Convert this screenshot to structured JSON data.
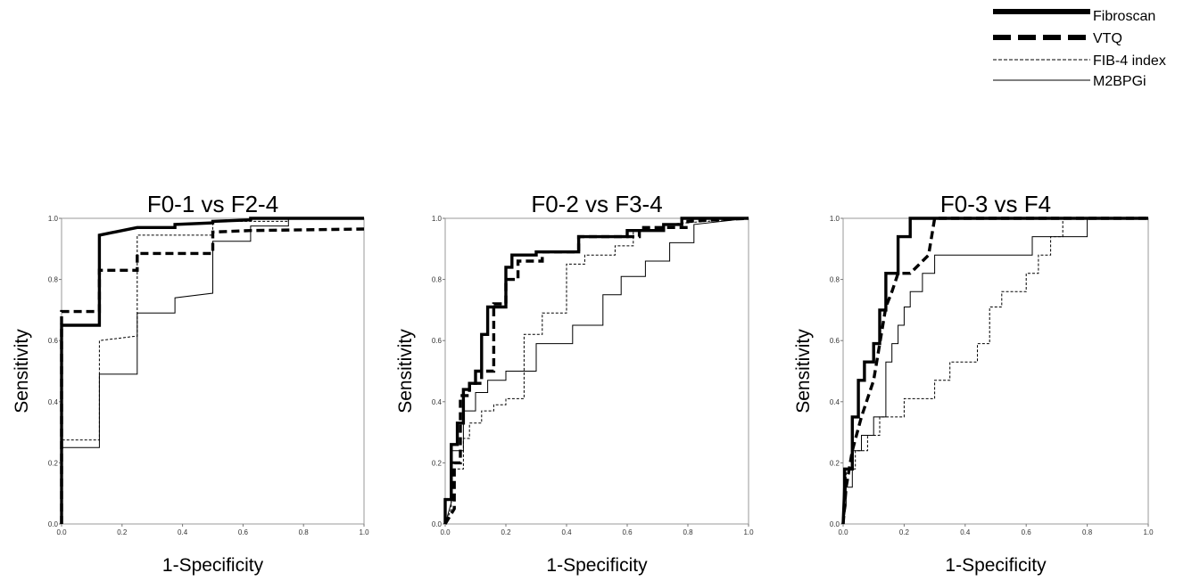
{
  "legend": {
    "items": [
      {
        "label": "Fibroscan",
        "style": "thick-solid"
      },
      {
        "label": "VTQ",
        "style": "thick-dashed"
      },
      {
        "label": "FIB-4 index",
        "style": "thin-dashed"
      },
      {
        "label": "M2BPGi",
        "style": "thin-solid"
      }
    ]
  },
  "chart_data": [
    {
      "type": "line",
      "title": "F0-1 vs F2-4",
      "xlabel": "1-Specificity",
      "ylabel": "Sensitivity",
      "xlim": [
        0,
        1
      ],
      "ylim": [
        0,
        1
      ],
      "ticks": [
        "0.0",
        "0.2",
        "0.4",
        "0.6",
        "0.8",
        "1.0"
      ],
      "grid": false,
      "series": [
        {
          "name": "Fibroscan",
          "x": [
            0,
            0,
            0.125,
            0.125,
            0.25,
            0.25,
            0.375,
            0.375,
            0.5,
            0.5,
            0.625,
            0.625,
            1
          ],
          "y": [
            0,
            0.65,
            0.65,
            0.945,
            0.97,
            0.97,
            0.97,
            0.98,
            0.985,
            0.99,
            0.995,
            1,
            1
          ]
        },
        {
          "name": "VTQ",
          "x": [
            0,
            0,
            0.125,
            0.125,
            0.25,
            0.25,
            0.5,
            0.5,
            0.625,
            1
          ],
          "y": [
            0,
            0.695,
            0.695,
            0.83,
            0.83,
            0.885,
            0.885,
            0.955,
            0.96,
            0.965
          ]
        },
        {
          "name": "FIB-4 index",
          "x": [
            0,
            0,
            0.125,
            0.125,
            0.25,
            0.25,
            0.5,
            0.5,
            0.75,
            0.75
          ],
          "y": [
            0,
            0.275,
            0.275,
            0.6,
            0.615,
            0.945,
            0.945,
            0.99,
            0.99,
            1
          ]
        },
        {
          "name": "M2BPGi",
          "x": [
            0,
            0,
            0.125,
            0.125,
            0.25,
            0.25,
            0.375,
            0.375,
            0.5,
            0.5,
            0.625,
            0.625,
            0.75,
            0.75,
            1
          ],
          "y": [
            0,
            0.25,
            0.25,
            0.49,
            0.49,
            0.69,
            0.69,
            0.74,
            0.755,
            0.925,
            0.925,
            0.975,
            0.975,
            1,
            1
          ]
        }
      ]
    },
    {
      "type": "line",
      "title": "F0-2 vs F3-4",
      "xlabel": "1-Specificity",
      "ylabel": "Sensitivity",
      "xlim": [
        0,
        1
      ],
      "ylim": [
        0,
        1
      ],
      "ticks": [
        "0.0",
        "0.2",
        "0.4",
        "0.6",
        "0.8",
        "1.0"
      ],
      "grid": false,
      "series": [
        {
          "name": "Fibroscan",
          "x": [
            0,
            0,
            0.02,
            0.02,
            0.04,
            0.04,
            0.06,
            0.06,
            0.08,
            0.08,
            0.1,
            0.1,
            0.12,
            0.12,
            0.14,
            0.14,
            0.16,
            0.16,
            0.2,
            0.2,
            0.22,
            0.22,
            0.3,
            0.3,
            0.44,
            0.44,
            0.6,
            0.6,
            0.72,
            0.72,
            0.78,
            0.78,
            1
          ],
          "y": [
            0,
            0.08,
            0.08,
            0.26,
            0.26,
            0.33,
            0.33,
            0.44,
            0.44,
            0.46,
            0.46,
            0.5,
            0.5,
            0.62,
            0.62,
            0.71,
            0.71,
            0.71,
            0.71,
            0.84,
            0.84,
            0.88,
            0.88,
            0.89,
            0.89,
            0.94,
            0.94,
            0.96,
            0.96,
            0.98,
            0.98,
            1,
            1
          ]
        },
        {
          "name": "VTQ",
          "x": [
            0,
            0.03,
            0.03,
            0.05,
            0.05,
            0.08,
            0.08,
            0.12,
            0.12,
            0.16,
            0.16,
            0.2,
            0.2,
            0.24,
            0.24,
            0.32,
            0.32,
            0.44,
            0.44,
            0.64,
            0.64,
            0.8,
            0.8,
            1
          ],
          "y": [
            0,
            0.05,
            0.2,
            0.2,
            0.42,
            0.42,
            0.46,
            0.46,
            0.5,
            0.5,
            0.72,
            0.72,
            0.8,
            0.8,
            0.86,
            0.86,
            0.89,
            0.89,
            0.94,
            0.94,
            0.97,
            0.97,
            0.99,
            1
          ]
        },
        {
          "name": "FIB-4 index",
          "x": [
            0,
            0.02,
            0.02,
            0.06,
            0.06,
            0.08,
            0.08,
            0.12,
            0.12,
            0.16,
            0.16,
            0.2,
            0.2,
            0.26,
            0.26,
            0.32,
            0.32,
            0.4,
            0.4,
            0.46,
            0.46,
            0.56,
            0.56,
            0.62,
            0.62,
            0.72,
            0.72,
            1
          ],
          "y": [
            0,
            0.05,
            0.18,
            0.18,
            0.28,
            0.28,
            0.33,
            0.33,
            0.37,
            0.37,
            0.39,
            0.39,
            0.41,
            0.41,
            0.62,
            0.62,
            0.69,
            0.69,
            0.85,
            0.85,
            0.88,
            0.88,
            0.91,
            0.91,
            0.96,
            0.96,
            0.98,
            1
          ]
        },
        {
          "name": "M2BPGi",
          "x": [
            0,
            0.02,
            0.02,
            0.06,
            0.06,
            0.1,
            0.1,
            0.14,
            0.14,
            0.2,
            0.2,
            0.3,
            0.3,
            0.42,
            0.42,
            0.52,
            0.52,
            0.58,
            0.58,
            0.66,
            0.66,
            0.74,
            0.74,
            0.82,
            0.82,
            1
          ],
          "y": [
            0,
            0.07,
            0.24,
            0.24,
            0.37,
            0.37,
            0.43,
            0.43,
            0.47,
            0.47,
            0.5,
            0.5,
            0.59,
            0.59,
            0.65,
            0.65,
            0.75,
            0.75,
            0.81,
            0.81,
            0.86,
            0.86,
            0.92,
            0.92,
            0.98,
            1
          ]
        }
      ]
    },
    {
      "type": "line",
      "title": "F0-3 vs F4",
      "xlabel": "1-Specificity",
      "ylabel": "Sensitivity",
      "xlim": [
        0,
        1
      ],
      "ylim": [
        0,
        1
      ],
      "ticks": [
        "0.0",
        "0.2",
        "0.4",
        "0.6",
        "0.8",
        "1.0"
      ],
      "grid": false,
      "series": [
        {
          "name": "Fibroscan",
          "x": [
            0,
            0.005,
            0.005,
            0.03,
            0.03,
            0.05,
            0.05,
            0.07,
            0.07,
            0.08,
            0.08,
            0.1,
            0.1,
            0.12,
            0.12,
            0.14,
            0.14,
            0.18,
            0.18,
            0.22,
            0.22,
            0.25,
            0.25,
            1
          ],
          "y": [
            0,
            0.12,
            0.18,
            0.18,
            0.35,
            0.35,
            0.47,
            0.47,
            0.53,
            0.53,
            0.53,
            0.53,
            0.59,
            0.59,
            0.7,
            0.7,
            0.82,
            0.82,
            0.94,
            0.94,
            1,
            1,
            1,
            1
          ]
        },
        {
          "name": "VTQ",
          "x": [
            0,
            0.01,
            0.01,
            0.03,
            0.03,
            0.06,
            0.06,
            0.1,
            0.1,
            0.14,
            0.14,
            0.16,
            0.16,
            0.18,
            0.18,
            0.22,
            0.22,
            0.28,
            0.28,
            0.3,
            0.3,
            1
          ],
          "y": [
            0,
            0.12,
            0.12,
            0.24,
            0.24,
            0.35,
            0.35,
            0.47,
            0.47,
            0.71,
            0.71,
            0.76,
            0.76,
            0.82,
            0.82,
            0.82,
            0.82,
            0.88,
            0.88,
            1,
            1,
            1
          ]
        },
        {
          "name": "FIB-4 index",
          "x": [
            0,
            0.01,
            0.01,
            0.04,
            0.04,
            0.08,
            0.08,
            0.12,
            0.12,
            0.16,
            0.16,
            0.2,
            0.2,
            0.26,
            0.26,
            0.3,
            0.3,
            0.35,
            0.35,
            0.4,
            0.4,
            0.44,
            0.44,
            0.48,
            0.48,
            0.52,
            0.52,
            0.56,
            0.56,
            0.6,
            0.6,
            0.64,
            0.64,
            0.68,
            0.68,
            0.72,
            0.72,
            1
          ],
          "y": [
            0,
            0.12,
            0.18,
            0.18,
            0.24,
            0.24,
            0.29,
            0.29,
            0.35,
            0.35,
            0.35,
            0.35,
            0.41,
            0.41,
            0.41,
            0.41,
            0.47,
            0.47,
            0.53,
            0.53,
            0.53,
            0.53,
            0.59,
            0.59,
            0.71,
            0.71,
            0.76,
            0.76,
            0.76,
            0.76,
            0.82,
            0.82,
            0.88,
            0.88,
            0.94,
            0.94,
            1,
            1
          ]
        },
        {
          "name": "M2BPGi",
          "x": [
            0,
            0.01,
            0.01,
            0.03,
            0.03,
            0.06,
            0.06,
            0.1,
            0.1,
            0.14,
            0.14,
            0.16,
            0.16,
            0.18,
            0.18,
            0.2,
            0.2,
            0.22,
            0.22,
            0.26,
            0.26,
            0.3,
            0.3,
            0.58,
            0.58,
            0.62,
            0.62,
            0.78,
            0.78,
            0.8,
            0.8,
            1
          ],
          "y": [
            0,
            0.06,
            0.12,
            0.12,
            0.24,
            0.24,
            0.29,
            0.29,
            0.35,
            0.35,
            0.53,
            0.53,
            0.59,
            0.59,
            0.65,
            0.65,
            0.71,
            0.71,
            0.76,
            0.76,
            0.82,
            0.82,
            0.88,
            0.88,
            0.88,
            0.88,
            0.94,
            0.94,
            0.94,
            0.94,
            1,
            1
          ]
        }
      ]
    }
  ]
}
